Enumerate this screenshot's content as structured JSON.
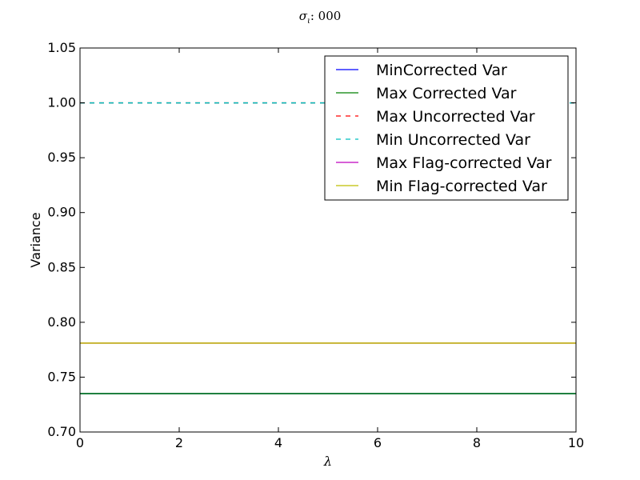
{
  "chart_data": {
    "type": "line",
    "title_symbol": "σ",
    "title_subscript": "ι",
    "title_value": ": 000",
    "xlabel": "λ",
    "ylabel": "Variance",
    "xlim": [
      0,
      10
    ],
    "ylim": [
      0.7,
      1.05
    ],
    "x_ticks": [
      0,
      2,
      4,
      6,
      8,
      10
    ],
    "x_tick_labels": [
      "0",
      "2",
      "4",
      "6",
      "8",
      "10"
    ],
    "y_ticks": [
      0.7,
      0.75,
      0.8,
      0.85,
      0.9,
      0.95,
      1.0,
      1.05
    ],
    "y_tick_labels": [
      "0.70",
      "0.75",
      "0.80",
      "0.85",
      "0.90",
      "0.95",
      "1.00",
      "1.05"
    ],
    "grid": false,
    "legend_position": "top-right",
    "x": [
      0,
      10
    ],
    "series": [
      {
        "name": "MinCorrected Var",
        "values": [
          0.735,
          0.735
        ],
        "color": "#0000ff",
        "dash": "solid"
      },
      {
        "name": "Max Corrected Var",
        "values": [
          0.735,
          0.735
        ],
        "color": "#008000",
        "dash": "solid"
      },
      {
        "name": "Max Uncorrected Var",
        "values": [
          1.0,
          1.0
        ],
        "color": "#ff0000",
        "dash": "dashed"
      },
      {
        "name": "Min Uncorrected Var",
        "values": [
          1.0,
          1.0
        ],
        "color": "#00bfbf",
        "dash": "dashed"
      },
      {
        "name": "Max Flag-corrected Var",
        "values": [
          0.781,
          0.781
        ],
        "color": "#bf00bf",
        "dash": "solid"
      },
      {
        "name": "Min Flag-corrected Var",
        "values": [
          0.781,
          0.781
        ],
        "color": "#bfbf00",
        "dash": "solid"
      }
    ]
  }
}
